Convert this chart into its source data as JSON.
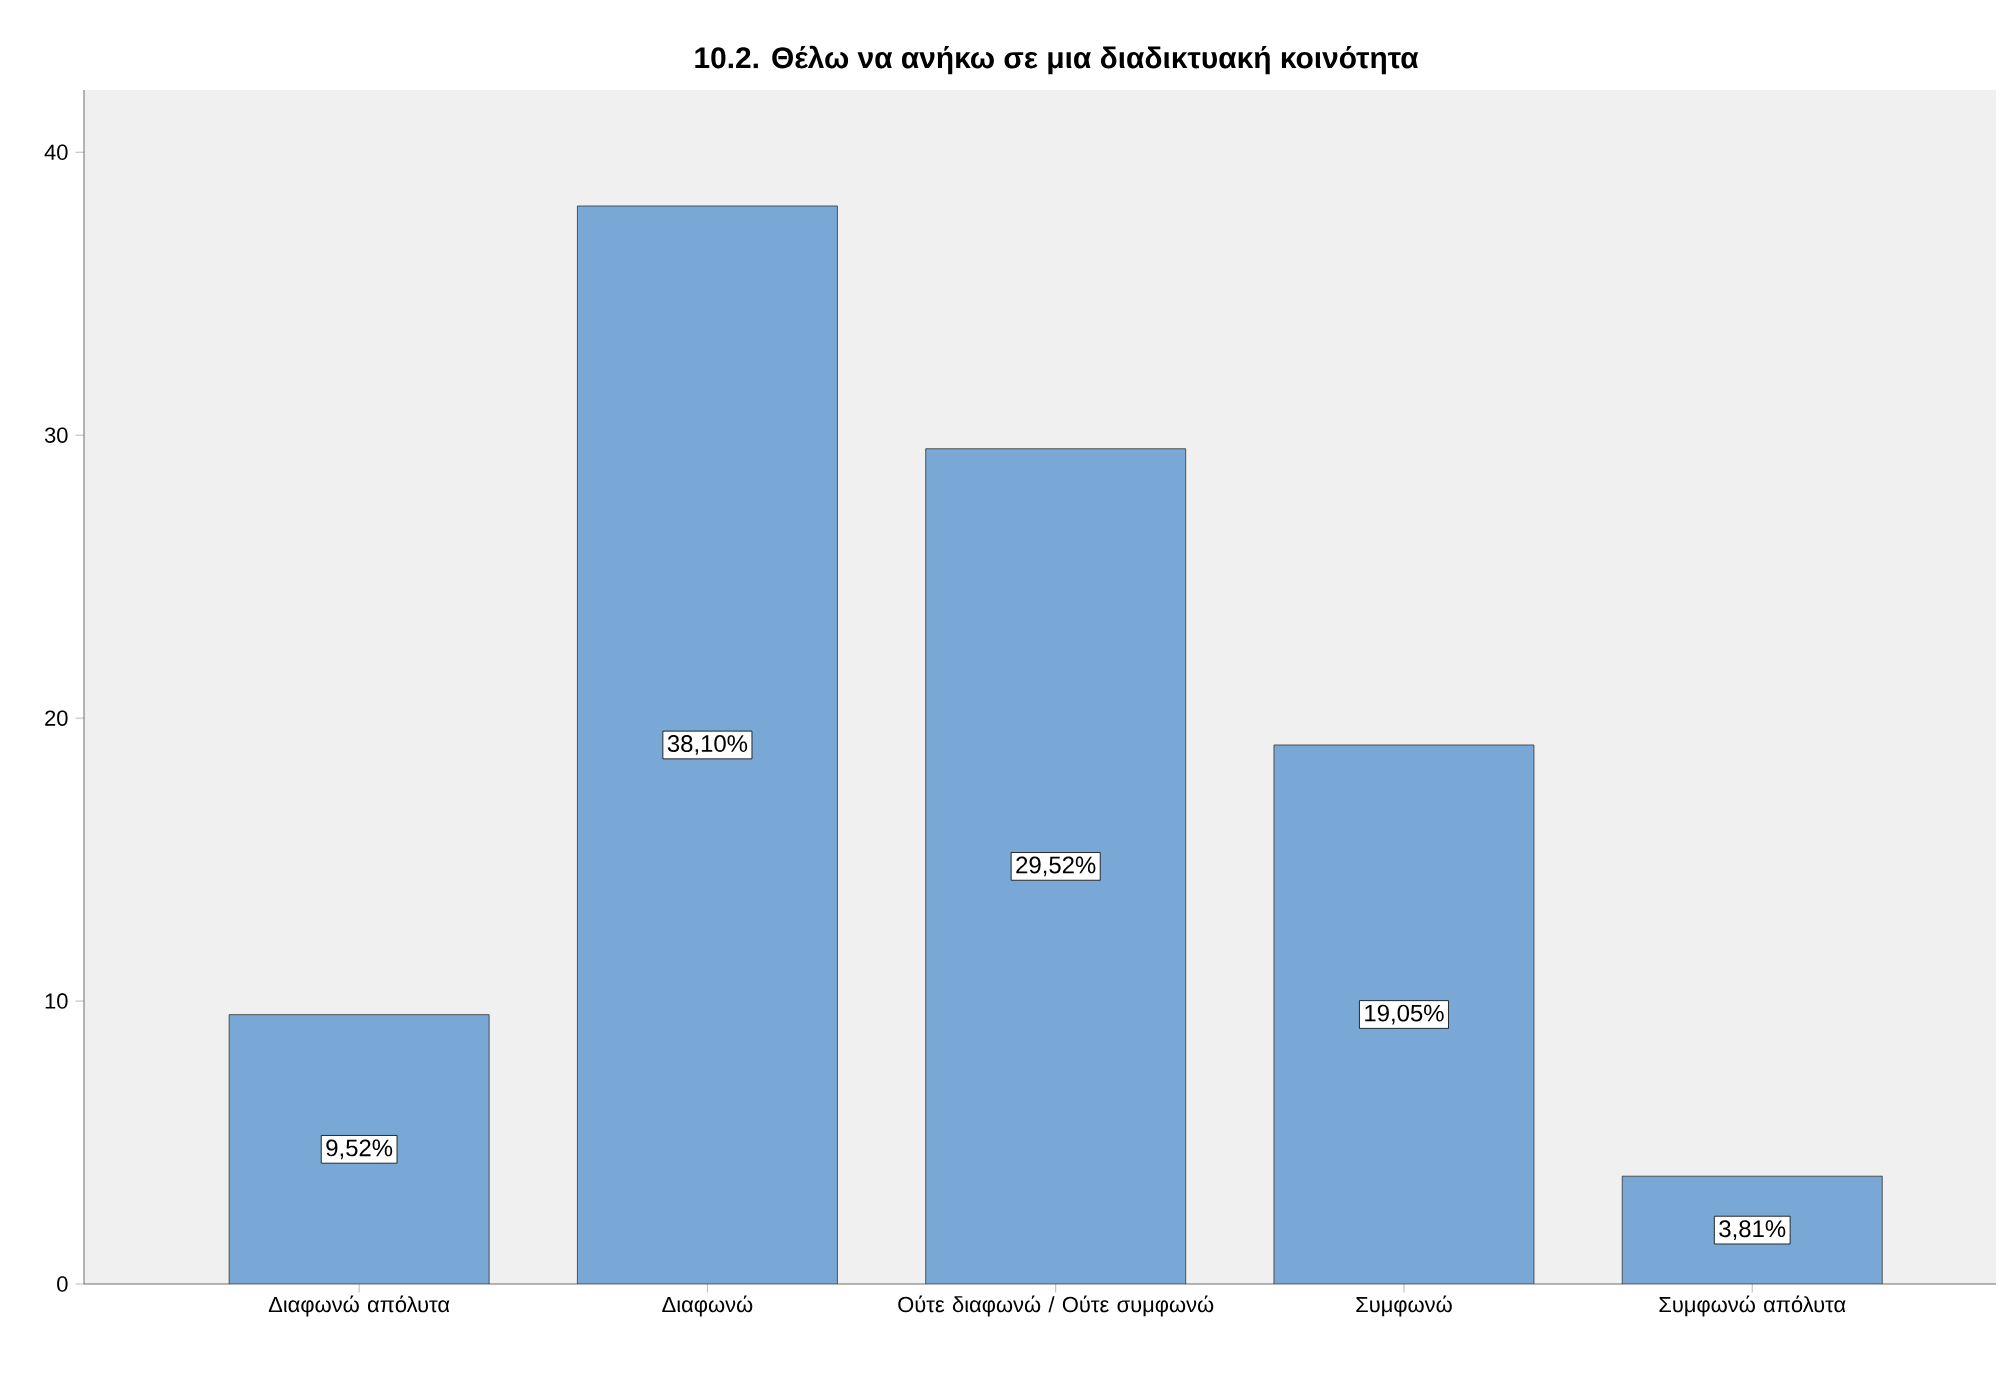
{
  "chart_data": {
    "type": "bar",
    "title": "10.2. Θέλω να ανήκω σε μια διαδικτυακή κοινότητα",
    "categories": [
      "Διαφωνώ απόλυτα",
      "Διαφωνώ",
      "Ούτε διαφωνώ / Ούτε συμφωνώ",
      "Συμφωνώ",
      "Συμφωνώ απόλυτα"
    ],
    "values": [
      9.52,
      38.1,
      29.52,
      19.05,
      3.81
    ],
    "value_labels": [
      "9,52%",
      "38,10%",
      "29,52%",
      "19,05%",
      "3,81%"
    ],
    "color": "#79a8d6",
    "ylim": [
      0,
      42.2
    ],
    "yticks": [
      0,
      10,
      20,
      30,
      40
    ],
    "grid": false
  }
}
